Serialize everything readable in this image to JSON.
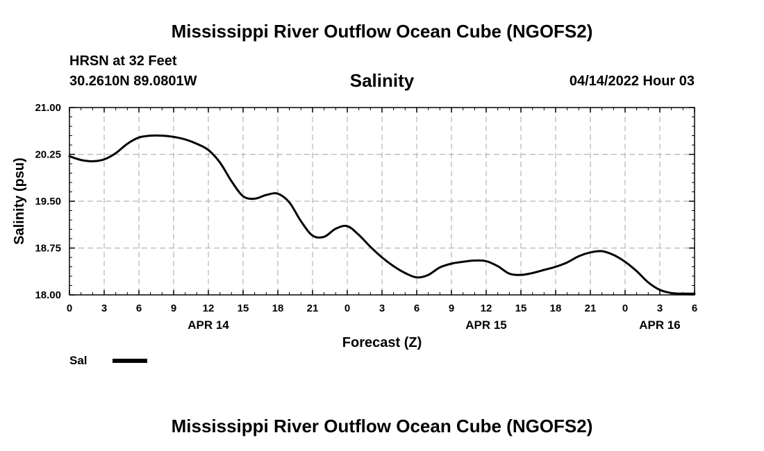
{
  "header": {
    "title": "Mississippi River Outflow Ocean Cube (NGOFS2)",
    "station": "HRSN at 32 Feet",
    "coordinates": "30.2610N  89.0801W",
    "variable": "Salinity",
    "valid_time": "04/14/2022 Hour 03"
  },
  "footer": {
    "title": "Mississippi River Outflow Ocean Cube (NGOFS2)"
  },
  "legend": {
    "label": "Sal",
    "color": "#000000"
  },
  "chart_data": {
    "type": "line",
    "title": "Salinity",
    "xlabel": "Forecast (Z)",
    "ylabel": "Salinity (psu)",
    "xlim": [
      0,
      54
    ],
    "ylim": [
      18.0,
      21.0
    ],
    "grid": true,
    "x_ticks": [
      0,
      3,
      6,
      9,
      12,
      15,
      18,
      21,
      24,
      27,
      30,
      33,
      36,
      39,
      42,
      45,
      48,
      51,
      54
    ],
    "x_tick_labels": [
      "0",
      "3",
      "6",
      "9",
      "12",
      "15",
      "18",
      "21",
      "0",
      "3",
      "6",
      "9",
      "12",
      "15",
      "18",
      "21",
      "0",
      "3",
      "6"
    ],
    "y_ticks": [
      18.0,
      18.75,
      19.5,
      20.25,
      21.0
    ],
    "y_tick_labels": [
      "18.00",
      "18.75",
      "19.50",
      "20.25",
      "21.00"
    ],
    "date_labels": [
      {
        "x": 12,
        "label": "APR 14"
      },
      {
        "x": 36,
        "label": "APR 15"
      },
      {
        "x": 51,
        "label": "APR 16"
      }
    ],
    "series": [
      {
        "name": "Sal",
        "color": "#000000",
        "x": [
          0,
          1,
          2,
          3,
          4,
          5,
          6,
          7,
          8,
          9,
          10,
          11,
          12,
          13,
          14,
          15,
          16,
          17,
          18,
          19,
          20,
          21,
          22,
          23,
          24,
          25,
          26,
          27,
          28,
          29,
          30,
          31,
          32,
          33,
          34,
          35,
          36,
          37,
          38,
          39,
          40,
          41,
          42,
          43,
          44,
          45,
          46,
          47,
          48,
          49,
          50,
          51,
          52,
          53,
          54
        ],
        "values": [
          20.22,
          20.16,
          20.14,
          20.17,
          20.27,
          20.42,
          20.52,
          20.55,
          20.55,
          20.53,
          20.49,
          20.42,
          20.32,
          20.12,
          19.82,
          19.58,
          19.54,
          19.6,
          19.62,
          19.48,
          19.18,
          18.95,
          18.93,
          19.06,
          19.1,
          18.96,
          18.77,
          18.6,
          18.46,
          18.35,
          18.28,
          18.32,
          18.44,
          18.5,
          18.53,
          18.55,
          18.54,
          18.46,
          18.34,
          18.32,
          18.35,
          18.4,
          18.45,
          18.52,
          18.62,
          18.68,
          18.7,
          18.64,
          18.53,
          18.38,
          18.2,
          18.08,
          18.03,
          18.02,
          18.02
        ]
      }
    ]
  }
}
